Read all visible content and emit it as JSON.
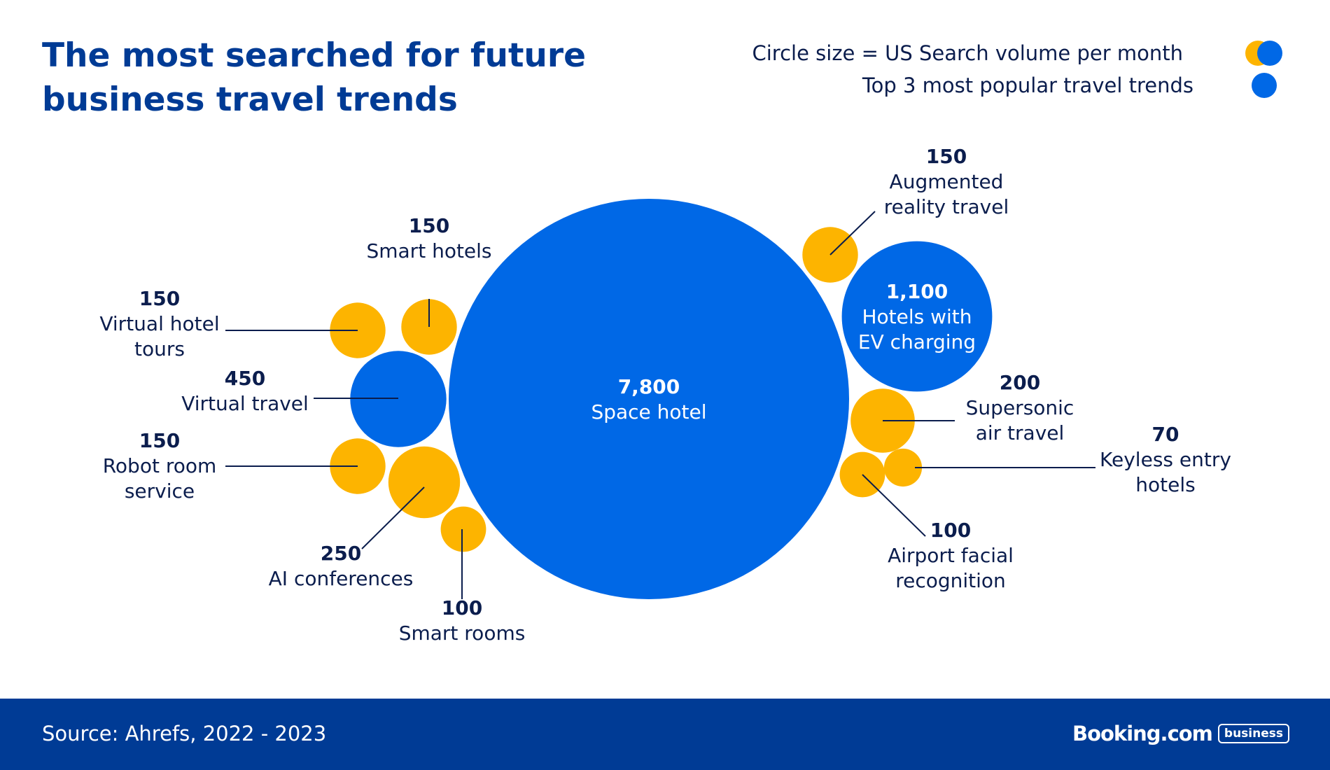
{
  "header": {
    "title": "The most searched for future business travel trends"
  },
  "legend": {
    "size_label": "Circle size = US Search volume per month",
    "top3_label": "Top 3 most popular travel trends"
  },
  "footer": {
    "source": "Source: Ahrefs, 2022 - 2023",
    "logo_word": "Booking.com",
    "logo_badge": "business"
  },
  "colors": {
    "top3": "#0068E6",
    "other": "#FDB400",
    "label_dark": "#0B1D4D",
    "brand_dark": "#003B95"
  },
  "chart_data": {
    "type": "bubble",
    "measure": "US search volume per month",
    "items": [
      {
        "name": "Space hotel",
        "value": 7800,
        "value_label": "7,800",
        "top3": true
      },
      {
        "name": "Hotels with EV charging",
        "value": 1100,
        "value_label": "1,100",
        "top3": true
      },
      {
        "name": "Virtual travel",
        "value": 450,
        "value_label": "450",
        "top3": true
      },
      {
        "name": "AI conferences",
        "value": 250,
        "value_label": "250",
        "top3": false
      },
      {
        "name": "Supersonic air travel",
        "value": 200,
        "value_label": "200",
        "top3": false
      },
      {
        "name": "Smart hotels",
        "value": 150,
        "value_label": "150",
        "top3": false
      },
      {
        "name": "Virtual hotel tours",
        "value": 150,
        "value_label": "150",
        "top3": false
      },
      {
        "name": "Robot room service",
        "value": 150,
        "value_label": "150",
        "top3": false
      },
      {
        "name": "Augmented reality travel",
        "value": 150,
        "value_label": "150",
        "top3": false
      },
      {
        "name": "Smart rooms",
        "value": 100,
        "value_label": "100",
        "top3": false
      },
      {
        "name": "Airport facial recognition",
        "value": 100,
        "value_label": "100",
        "top3": false
      },
      {
        "name": "Keyless entry hotels",
        "value": 70,
        "value_label": "70",
        "top3": false
      }
    ]
  }
}
